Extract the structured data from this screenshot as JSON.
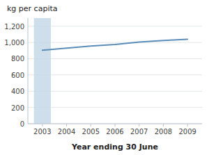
{
  "chart_data": {
    "type": "line",
    "x": [
      2003,
      2004,
      2005,
      2006,
      2007,
      2008,
      2009
    ],
    "values": [
      905,
      930,
      955,
      975,
      1005,
      1025,
      1040
    ],
    "color": "#5b8db8",
    "band": {
      "x": 2003,
      "half_width": 0.35,
      "color": "#c5d8e8"
    },
    "y_label": "kg per capita",
    "x_label": "Year ending 30 June",
    "xlim": [
      2002.4,
      2009.6
    ],
    "xticks": [
      2003,
      2004,
      2005,
      2006,
      2007,
      2008,
      2009
    ],
    "ylim": [
      0,
      1300
    ],
    "yticks": [
      0,
      200,
      400,
      600,
      800,
      {
        "value": 1000,
        "label": "1,000"
      },
      {
        "value": 1200,
        "label": "1,200"
      }
    ],
    "grid": true
  }
}
